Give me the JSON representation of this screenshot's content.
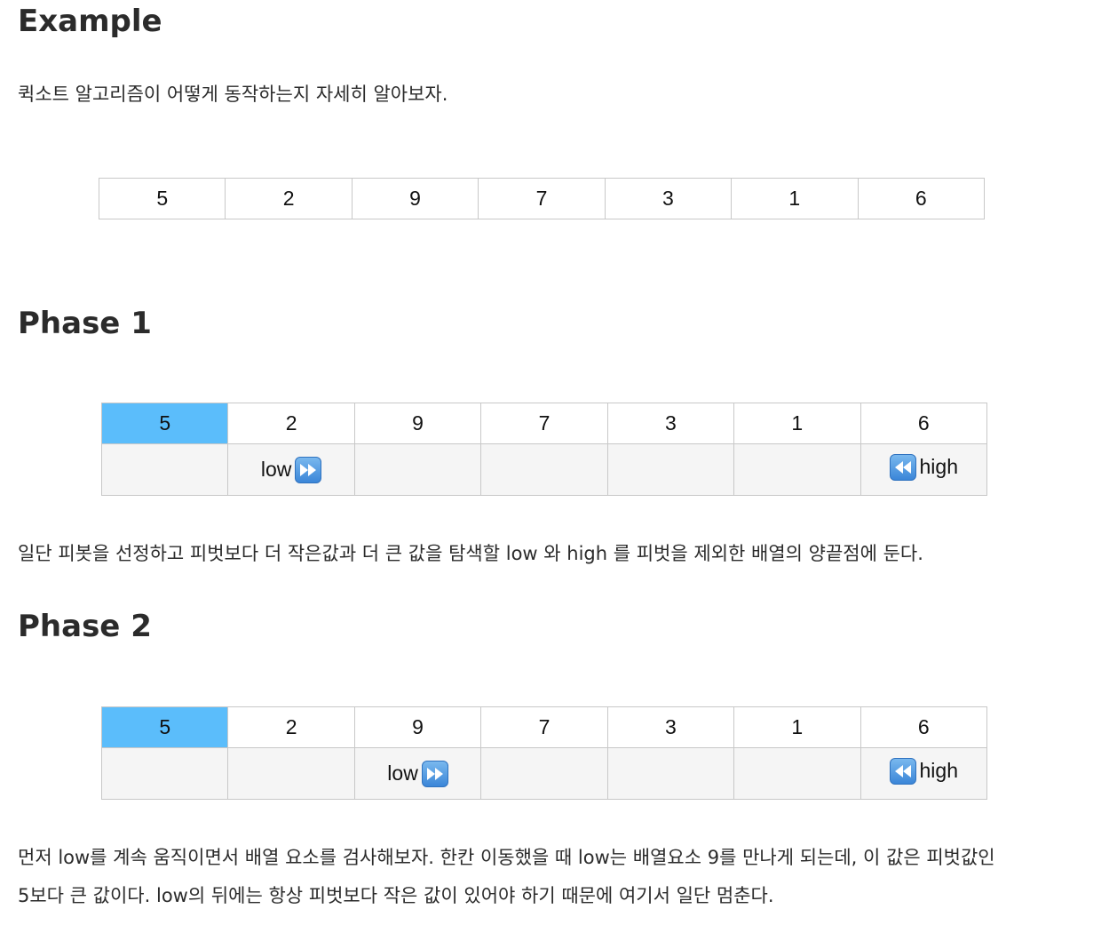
{
  "example": {
    "heading": "Example",
    "description": "퀵소트 알고리즘이 어떻게 동작하는지 자세히 알아보자.",
    "array": [
      "5",
      "2",
      "9",
      "7",
      "3",
      "1",
      "6"
    ]
  },
  "phase1": {
    "heading": "Phase 1",
    "array": [
      "5",
      "2",
      "9",
      "7",
      "3",
      "1",
      "6"
    ],
    "pivot_index": 0,
    "low_label": "low",
    "high_label": "high",
    "low_index": 1,
    "high_index": 6,
    "description": "일단 피봇을 선정하고 피벗보다 더 작은값과 더 큰 값을 탐색할 low 와 high 를 피벗을 제외한 배열의 양끝점에 둔다."
  },
  "phase2": {
    "heading": "Phase 2",
    "array": [
      "5",
      "2",
      "9",
      "7",
      "3",
      "1",
      "6"
    ],
    "pivot_index": 0,
    "low_label": "low",
    "high_label": "high",
    "low_index": 2,
    "high_index": 6,
    "description_line1": "먼저 low를 계속 움직이면서 배열 요소를 검사해보자. 한칸 이동했을 때 low는 배열요소 9를 만나게 되는데, 이 값은 피벗값인",
    "description_line2": "5보다 큰 값이다. low의 뒤에는 항상 피벗보다 작은 값이 있어야 하기 때문에 여기서 일단 멈춘다."
  },
  "colors": {
    "pivot": "#5bbdfb",
    "pointer_row": "#f5f5f5",
    "border": "#c8c8c8",
    "icon": "#3b86d8"
  },
  "icons": {
    "low_icon": "fast-forward-icon",
    "high_icon": "rewind-icon"
  }
}
